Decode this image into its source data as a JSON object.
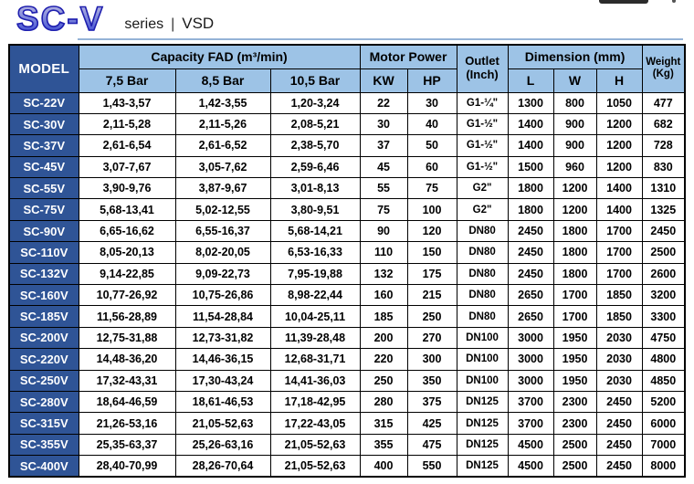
{
  "header": {
    "logo": "SC-V",
    "series_label": "series",
    "separator": "|",
    "variant_label": "VSD"
  },
  "table": {
    "col_model": "MODEL",
    "group_capacity": "Capacity FAD (m³/min)",
    "group_motor": "Motor Power",
    "group_outlet_line1": "Outlet",
    "group_outlet_line2": "(Inch)",
    "group_dimension": "Dimension (mm)",
    "group_weight_line1": "Weight",
    "group_weight_line2": "(Kg)",
    "sub_headers": [
      "7,5 Bar",
      "8,5 Bar",
      "10,5 Bar",
      "KW",
      "HP",
      "L",
      "W",
      "H"
    ],
    "rows": [
      {
        "model": "SC-22V",
        "values": [
          "1,43-3,57",
          "1,42-3,55",
          "1,20-3,24",
          "22",
          "30",
          "G1-¼\"",
          "1300",
          "800",
          "1050",
          "477"
        ]
      },
      {
        "model": "SC-30V",
        "values": [
          "2,11-5,28",
          "2,11-5,26",
          "2,08-5,21",
          "30",
          "40",
          "G1-½\"",
          "1400",
          "900",
          "1200",
          "682"
        ]
      },
      {
        "model": "SC-37V",
        "values": [
          "2,61-6,54",
          "2,61-6,52",
          "2,38-5,70",
          "37",
          "50",
          "G1-½\"",
          "1400",
          "900",
          "1200",
          "728"
        ]
      },
      {
        "model": "SC-45V",
        "values": [
          "3,07-7,67",
          "3,05-7,62",
          "2,59-6,46",
          "45",
          "60",
          "G1-½\"",
          "1500",
          "960",
          "1200",
          "830"
        ]
      },
      {
        "model": "SC-55V",
        "values": [
          "3,90-9,76",
          "3,87-9,67",
          "3,01-8,13",
          "55",
          "75",
          "G2\"",
          "1800",
          "1200",
          "1400",
          "1310"
        ]
      },
      {
        "model": "SC-75V",
        "values": [
          "5,68-13,41",
          "5,02-12,55",
          "3,80-9,51",
          "75",
          "100",
          "G2\"",
          "1800",
          "1200",
          "1400",
          "1325"
        ]
      },
      {
        "model": "SC-90V",
        "values": [
          "6,65-16,62",
          "6,55-16,37",
          "5,68-14,21",
          "90",
          "120",
          "DN80",
          "2450",
          "1800",
          "1700",
          "2450"
        ]
      },
      {
        "model": "SC-110V",
        "values": [
          "8,05-20,13",
          "8,02-20,05",
          "6,53-16,33",
          "110",
          "150",
          "DN80",
          "2450",
          "1800",
          "1700",
          "2500"
        ]
      },
      {
        "model": "SC-132V",
        "values": [
          "9,14-22,85",
          "9,09-22,73",
          "7,95-19,88",
          "132",
          "175",
          "DN80",
          "2450",
          "1800",
          "1700",
          "2600"
        ]
      },
      {
        "model": "SC-160V",
        "values": [
          "10,77-26,92",
          "10,75-26,86",
          "8,98-22,44",
          "160",
          "215",
          "DN80",
          "2650",
          "1700",
          "1850",
          "3200"
        ]
      },
      {
        "model": "SC-185V",
        "values": [
          "11,56-28,89",
          "11,54-28,84",
          "10,04-25,11",
          "185",
          "250",
          "DN80",
          "2650",
          "1700",
          "1850",
          "3300"
        ]
      },
      {
        "model": "SC-200V",
        "values": [
          "12,75-31,88",
          "12,73-31,82",
          "11,39-28,48",
          "200",
          "270",
          "DN100",
          "3000",
          "1950",
          "2030",
          "4750"
        ]
      },
      {
        "model": "SC-220V",
        "values": [
          "14,48-36,20",
          "14,46-36,15",
          "12,68-31,71",
          "220",
          "300",
          "DN100",
          "3000",
          "1950",
          "2030",
          "4800"
        ]
      },
      {
        "model": "SC-250V",
        "values": [
          "17,32-43,31",
          "17,30-43,24",
          "14,41-36,03",
          "250",
          "350",
          "DN100",
          "3000",
          "1950",
          "2030",
          "4850"
        ]
      },
      {
        "model": "SC-280V",
        "values": [
          "18,64-46,59",
          "18,61-46,53",
          "17,18-42,95",
          "280",
          "375",
          "DN125",
          "3700",
          "2300",
          "2450",
          "5200"
        ]
      },
      {
        "model": "SC-315V",
        "values": [
          "21,26-53,16",
          "21,05-52,63",
          "17,22-43,05",
          "315",
          "425",
          "DN125",
          "3700",
          "2300",
          "2450",
          "6000"
        ]
      },
      {
        "model": "SC-355V",
        "values": [
          "25,35-63,37",
          "25,26-63,16",
          "21,05-52,63",
          "355",
          "475",
          "DN125",
          "4500",
          "2500",
          "2450",
          "7000"
        ]
      },
      {
        "model": "SC-400V",
        "values": [
          "28,40-70,99",
          "28,26-70,64",
          "21,05-52,63",
          "400",
          "550",
          "DN125",
          "4500",
          "2500",
          "2450",
          "8000"
        ]
      }
    ]
  },
  "colors": {
    "model_column_bg": "#2f5496",
    "header_bg": "#9dc3e6",
    "table_border": "#000000",
    "divider": "#95b3d7",
    "logo_blue": "#1f1fae"
  }
}
